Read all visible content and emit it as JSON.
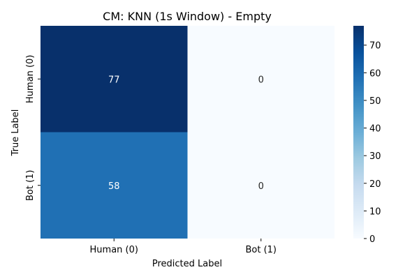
{
  "chart_data": {
    "type": "heatmap",
    "title": "CM: KNN (1s Window) - Empty",
    "xlabel": "Predicted Label",
    "ylabel": "True Label",
    "x_categories": [
      "Human (0)",
      "Bot (1)"
    ],
    "y_categories": [
      "Human (0)",
      "Bot (1)"
    ],
    "values": [
      [
        77,
        0
      ],
      [
        58,
        0
      ]
    ],
    "colormap": "Blues",
    "colorbar": {
      "min": 0,
      "max": 77,
      "ticks": [
        0,
        10,
        20,
        30,
        40,
        50,
        60,
        70
      ]
    }
  }
}
